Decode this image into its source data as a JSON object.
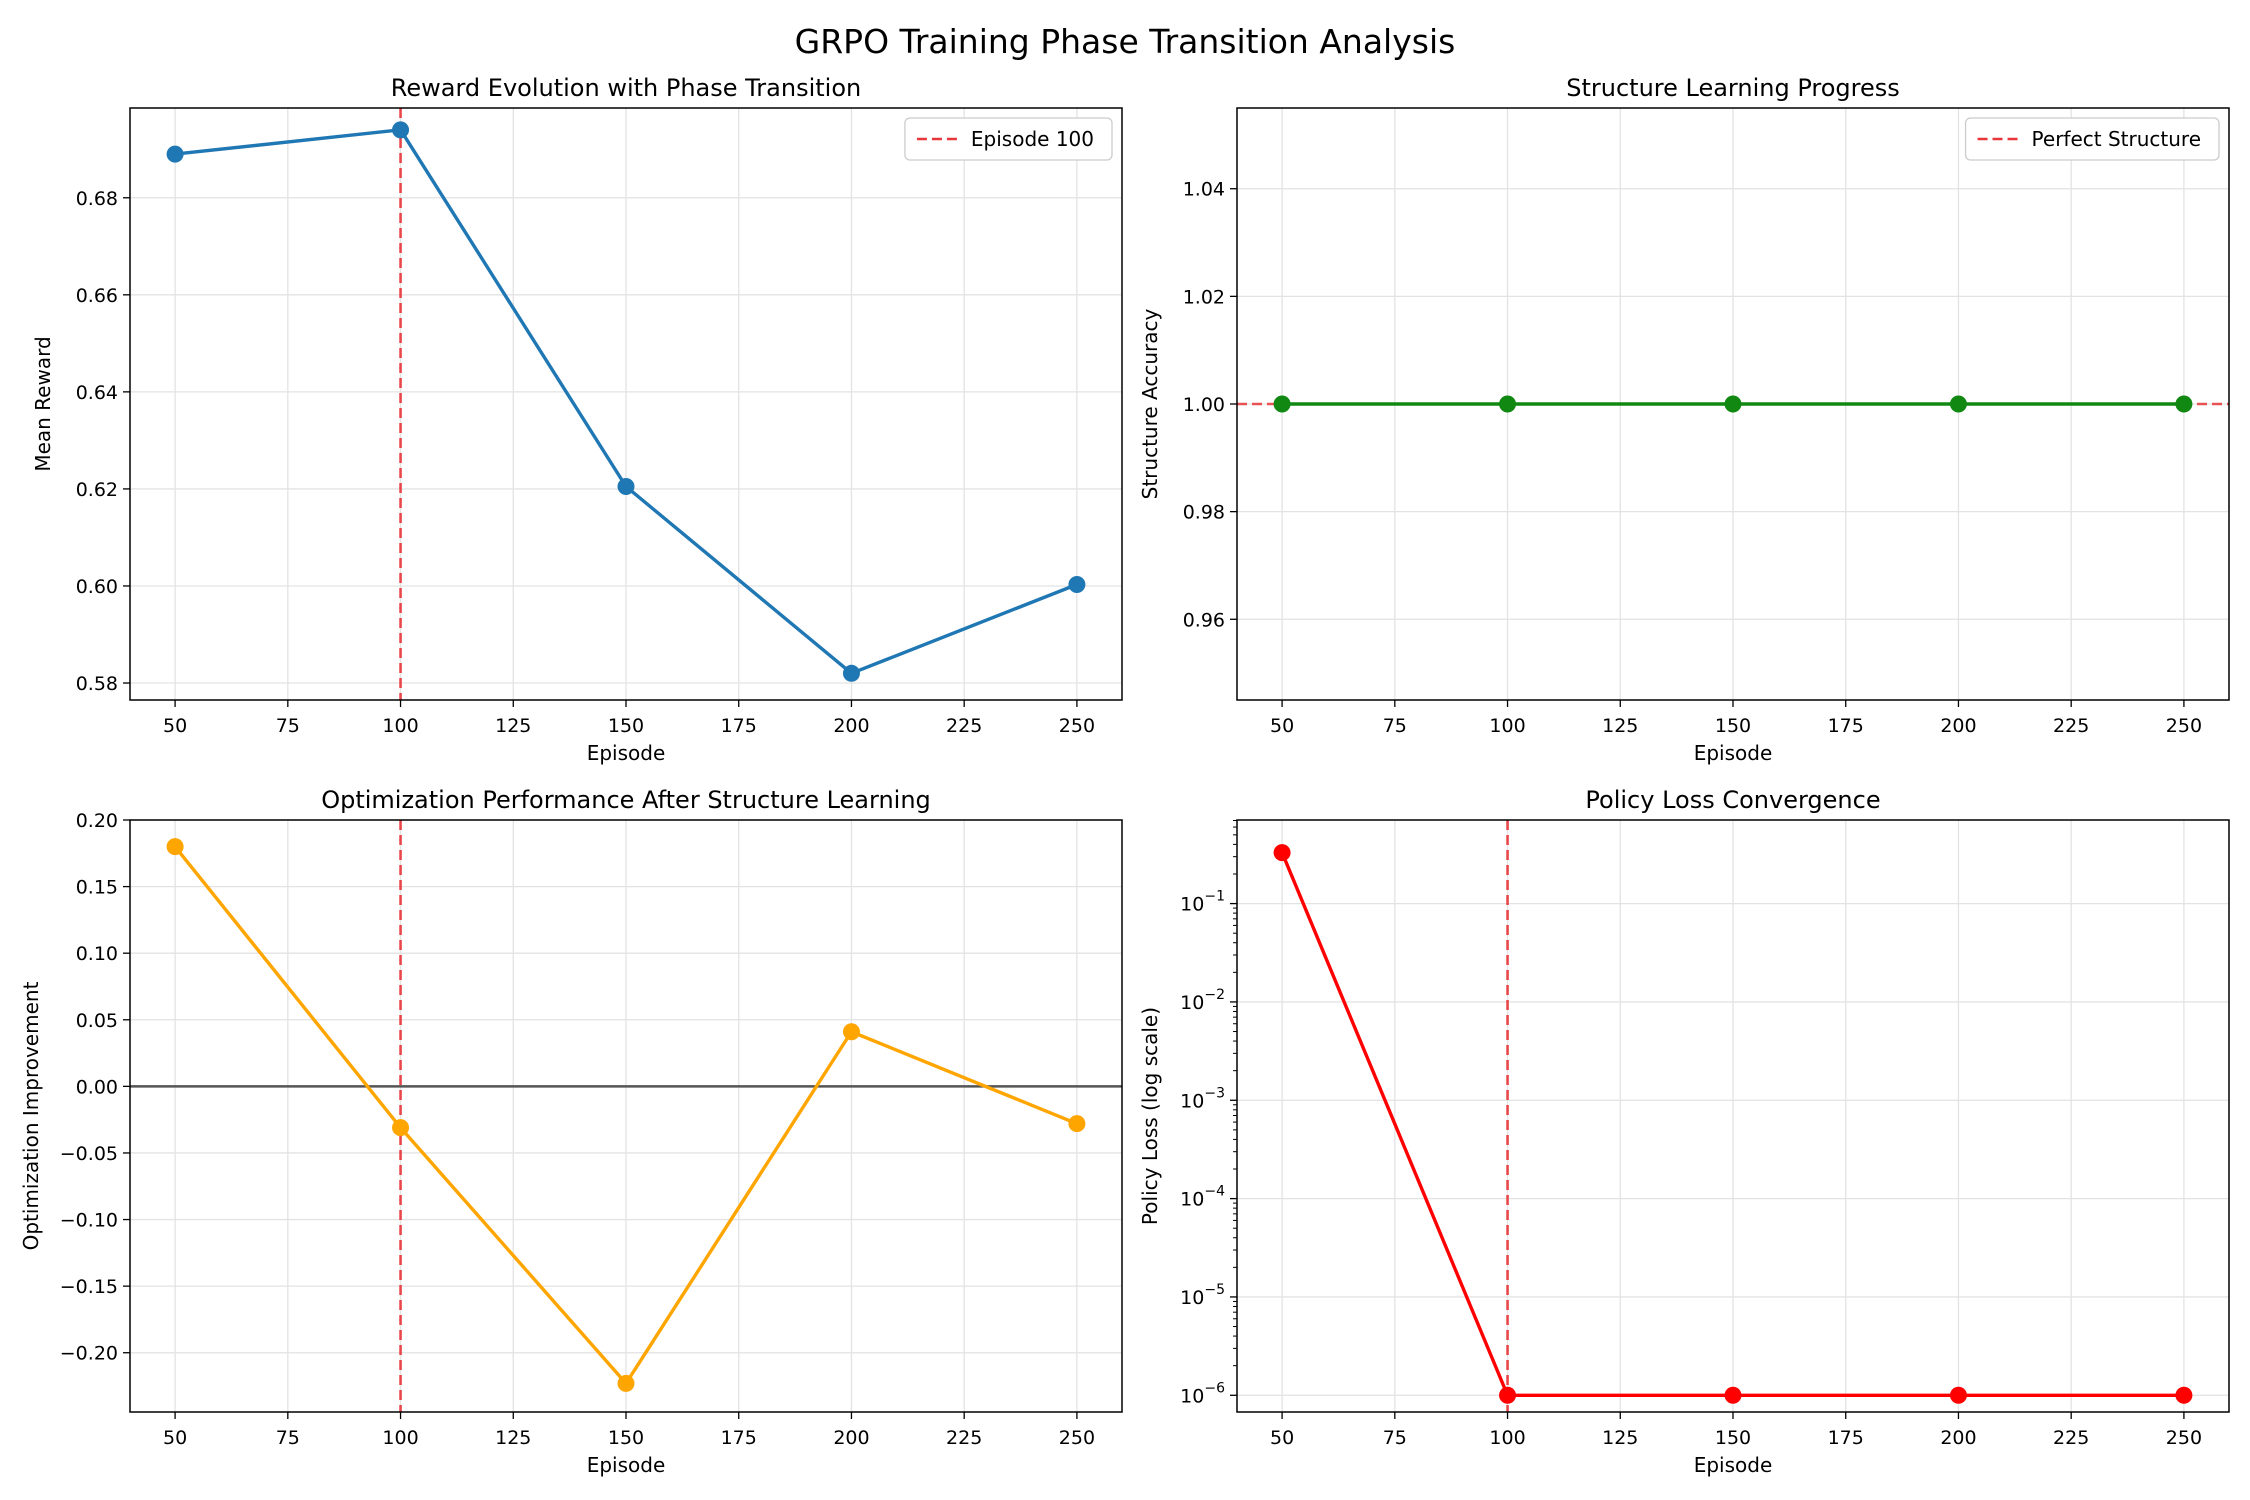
{
  "figure": {
    "title": "GRPO Training Phase Transition Analysis"
  },
  "chart_data": [
    {
      "id": "reward",
      "type": "line",
      "title": "Reward Evolution with Phase Transition",
      "xlabel": "Episode",
      "ylabel": "Mean Reward",
      "yscale": "linear",
      "xlim": [
        40,
        260
      ],
      "ylim": [
        0.5765,
        0.6985
      ],
      "xticks": [
        50,
        75,
        100,
        125,
        150,
        175,
        200,
        225,
        250
      ],
      "xtick_labels": [
        "50",
        "75",
        "100",
        "125",
        "150",
        "175",
        "200",
        "225",
        "250"
      ],
      "yticks": [
        0.58,
        0.6,
        0.62,
        0.64,
        0.66,
        0.68
      ],
      "ytick_labels": [
        "0.58",
        "0.60",
        "0.62",
        "0.64",
        "0.66",
        "0.68"
      ],
      "grid": true,
      "series": [
        {
          "x": [
            50,
            100,
            150,
            200,
            250
          ],
          "y": [
            0.689,
            0.694,
            0.6205,
            0.582,
            0.6003
          ],
          "color": "#1f77b4"
        }
      ],
      "vlines": [
        {
          "x": 100,
          "color": "#e8373a"
        }
      ],
      "hlines": [],
      "legend": {
        "position": "upper-right",
        "entries": [
          {
            "label": "Episode 100",
            "color": "#e8373a",
            "style": "dashed"
          }
        ]
      }
    },
    {
      "id": "structure",
      "type": "line",
      "title": "Structure Learning Progress",
      "xlabel": "Episode",
      "ylabel": "Structure Accuracy",
      "yscale": "linear",
      "xlim": [
        40,
        260
      ],
      "ylim": [
        0.945,
        1.055
      ],
      "xticks": [
        50,
        75,
        100,
        125,
        150,
        175,
        200,
        225,
        250
      ],
      "xtick_labels": [
        "50",
        "75",
        "100",
        "125",
        "150",
        "175",
        "200",
        "225",
        "250"
      ],
      "yticks": [
        0.96,
        0.98,
        1.0,
        1.02,
        1.04
      ],
      "ytick_labels": [
        "0.96",
        "0.98",
        "1.00",
        "1.02",
        "1.04"
      ],
      "grid": true,
      "series": [
        {
          "x": [
            50,
            100,
            150,
            200,
            250
          ],
          "y": [
            1.0,
            1.0,
            1.0,
            1.0,
            1.0
          ],
          "color": "#118811"
        }
      ],
      "vlines": [],
      "hlines": [
        {
          "y": 1.0,
          "color": "#e8373a",
          "style": "dashed"
        }
      ],
      "legend": {
        "position": "upper-right",
        "entries": [
          {
            "label": "Perfect Structure",
            "color": "#e8373a",
            "style": "dashed"
          }
        ]
      }
    },
    {
      "id": "optimization",
      "type": "line",
      "title": "Optimization Performance After Structure Learning",
      "xlabel": "Episode",
      "ylabel": "Optimization Improvement",
      "yscale": "linear",
      "xlim": [
        40,
        260
      ],
      "ylim": [
        -0.2445,
        0.2
      ],
      "xticks": [
        50,
        75,
        100,
        125,
        150,
        175,
        200,
        225,
        250
      ],
      "xtick_labels": [
        "50",
        "75",
        "100",
        "125",
        "150",
        "175",
        "200",
        "225",
        "250"
      ],
      "yticks": [
        -0.2,
        -0.15,
        -0.1,
        -0.05,
        0.0,
        0.05,
        0.1,
        0.15,
        0.2
      ],
      "ytick_labels": [
        "−0.20",
        "−0.15",
        "−0.10",
        "−0.05",
        "0.00",
        "0.05",
        "0.10",
        "0.15",
        "0.20"
      ],
      "grid": true,
      "series": [
        {
          "x": [
            50,
            100,
            150,
            200,
            250
          ],
          "y": [
            0.18,
            -0.031,
            -0.223,
            0.041,
            -0.028
          ],
          "color": "#ffa500"
        }
      ],
      "vlines": [
        {
          "x": 100,
          "color": "#e8373a"
        }
      ],
      "hlines": [
        {
          "y": 0.0,
          "color": "#555555",
          "style": "solid"
        }
      ],
      "legend": null
    },
    {
      "id": "policy",
      "type": "line",
      "title": "Policy Loss Convergence",
      "xlabel": "Episode",
      "ylabel": "Policy Loss (log scale)",
      "yscale": "log",
      "xlim": [
        40,
        260
      ],
      "ylim_exp": [
        -6.17,
        -0.15
      ],
      "xticks": [
        50,
        75,
        100,
        125,
        150,
        175,
        200,
        225,
        250
      ],
      "xtick_labels": [
        "50",
        "75",
        "100",
        "125",
        "150",
        "175",
        "200",
        "225",
        "250"
      ],
      "yticks_exp": [
        -6,
        -5,
        -4,
        -3,
        -2,
        -1
      ],
      "ytick_labels": [
        "−6",
        "−5",
        "−4",
        "−3",
        "−2",
        "−1"
      ],
      "grid": true,
      "series": [
        {
          "x": [
            50,
            100,
            150,
            200,
            250
          ],
          "y": [
            0.33,
            1e-06,
            1e-06,
            1e-06,
            1e-06
          ],
          "color": "#ff0000"
        }
      ],
      "vlines": [
        {
          "x": 100,
          "color": "#e8373a"
        }
      ],
      "hlines": [],
      "legend": null
    }
  ]
}
